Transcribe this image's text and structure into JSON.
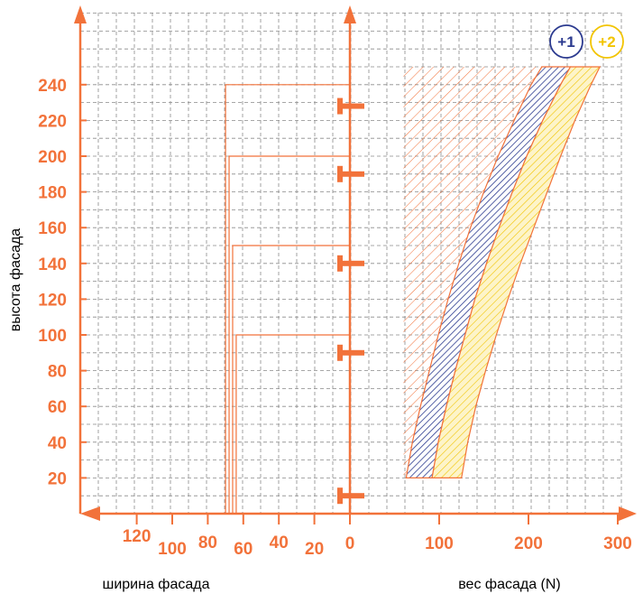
{
  "chart_data": {
    "type": "area",
    "ylabel": "высота фасада",
    "xlabel_left": "ширина фасада",
    "xlabel_right": "вес фасада (N)",
    "y_ticks": [
      "240",
      "220",
      "200",
      "180",
      "160",
      "140",
      "120",
      "100",
      "80",
      "60",
      "40",
      "20"
    ],
    "y_tick_values": [
      240,
      220,
      200,
      180,
      160,
      140,
      120,
      100,
      80,
      60,
      40,
      20
    ],
    "weight_ticks": [
      "0",
      "100",
      "200",
      "300"
    ],
    "weight_tick_values": [
      0,
      100,
      200,
      300
    ],
    "width_ticks": [
      "120",
      "100",
      "80",
      "60",
      "40",
      "20"
    ],
    "width_tick_values": [
      120,
      100,
      80,
      60,
      40,
      20
    ],
    "ylim": [
      0,
      260
    ],
    "weight_xlim": [
      0,
      300
    ],
    "width_xlim": [
      0,
      130
    ],
    "hinge_heights": [
      228,
      190,
      140,
      90,
      10
    ],
    "width_limits": [
      {
        "height_max": 240,
        "width": 70
      },
      {
        "height_max": 200,
        "width": 68
      },
      {
        "height_max": 150,
        "width": 66
      },
      {
        "height_max": 100,
        "width": 64
      }
    ],
    "regions": [
      {
        "name": "+1",
        "color": "#2b3a8f",
        "lower": [
          [
            63,
            20
          ],
          [
            70,
            40
          ],
          [
            79,
            60
          ],
          [
            89,
            80
          ],
          [
            99,
            100
          ],
          [
            110,
            120
          ],
          [
            122,
            140
          ],
          [
            135,
            160
          ],
          [
            150,
            180
          ],
          [
            166,
            200
          ],
          [
            184,
            220
          ],
          [
            203,
            240
          ],
          [
            215,
            250
          ]
        ],
        "upper": [
          [
            92,
            20
          ],
          [
            99,
            40
          ],
          [
            108,
            60
          ],
          [
            118,
            80
          ],
          [
            129,
            100
          ],
          [
            140,
            120
          ],
          [
            153,
            140
          ],
          [
            167,
            160
          ],
          [
            182,
            180
          ],
          [
            198,
            200
          ],
          [
            216,
            220
          ],
          [
            236,
            240
          ],
          [
            247,
            250
          ]
        ]
      },
      {
        "name": "+2",
        "color": "#f2c400",
        "lower": [
          [
            92,
            20
          ],
          [
            99,
            40
          ],
          [
            108,
            60
          ],
          [
            118,
            80
          ],
          [
            129,
            100
          ],
          [
            140,
            120
          ],
          [
            153,
            140
          ],
          [
            167,
            160
          ],
          [
            182,
            180
          ],
          [
            198,
            200
          ],
          [
            216,
            220
          ],
          [
            236,
            240
          ],
          [
            247,
            250
          ]
        ],
        "upper": [
          [
            125,
            20
          ],
          [
            132,
            40
          ],
          [
            141,
            60
          ],
          [
            152,
            80
          ],
          [
            164,
            100
          ],
          [
            177,
            120
          ],
          [
            191,
            140
          ],
          [
            206,
            160
          ],
          [
            221,
            180
          ],
          [
            236,
            200
          ],
          [
            252,
            220
          ],
          [
            270,
            240
          ],
          [
            280,
            250
          ]
        ]
      }
    ],
    "hatch_zone": {
      "color": "#f2723a",
      "weight_min": 60,
      "height_min": 20,
      "height_max": 250
    },
    "badges": [
      {
        "label": "+1",
        "color": "#2b3a8f"
      },
      {
        "label": "+2",
        "color": "#f2c400"
      }
    ],
    "colors": {
      "axis": "#f2723a",
      "grid": "#8a8a8a",
      "tick_text": "#f2723a"
    }
  }
}
